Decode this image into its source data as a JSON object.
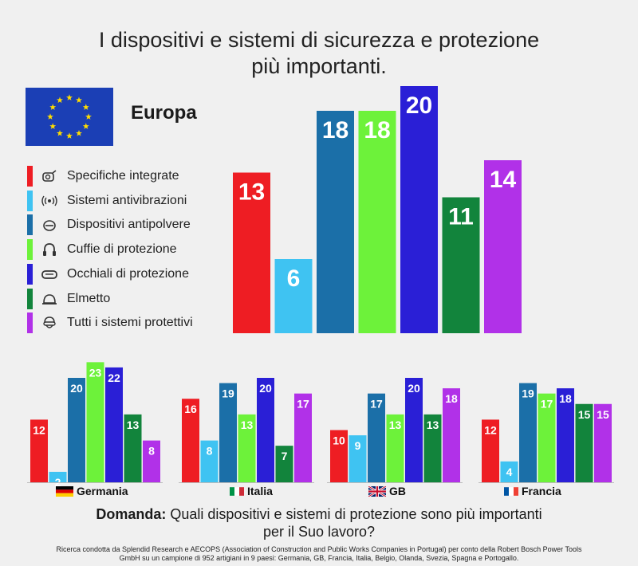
{
  "title_line1": "I dispositivi e sistemi di sicurezza e protezione",
  "title_line2": "più importanti.",
  "region": "Europa",
  "legend": [
    {
      "label": "Specifiche integrate",
      "color": "#ee1d23",
      "icon": "integrated-specs-icon"
    },
    {
      "label": "Sistemi antivibrazioni",
      "color": "#3fc3f2",
      "icon": "antivibration-icon"
    },
    {
      "label": "Dispositivi antipolvere",
      "color": "#1b6fa8",
      "icon": "dust-protection-icon"
    },
    {
      "label": "Cuffie di protezione",
      "color": "#6df23a",
      "icon": "ear-protection-icon"
    },
    {
      "label": "Occhiali di protezione",
      "color": "#2a1fd6",
      "icon": "goggles-icon"
    },
    {
      "label": "Elmetto",
      "color": "#12843c",
      "icon": "helmet-icon"
    },
    {
      "label": "Tutti i sistemi protettivi",
      "color": "#b131e8",
      "icon": "full-protection-icon"
    }
  ],
  "chart_data": [
    {
      "type": "bar",
      "name": "Europa",
      "categories": [
        "Specifiche integrate",
        "Sistemi antivibrazioni",
        "Dispositivi antipolvere",
        "Cuffie di protezione",
        "Occhiali di protezione",
        "Elmetto",
        "Tutti i sistemi protettivi"
      ],
      "values": [
        13,
        6,
        18,
        18,
        20,
        11,
        14
      ],
      "ylim": [
        0,
        20
      ]
    },
    {
      "type": "bar",
      "name": "Germania",
      "categories": [
        "Specifiche integrate",
        "Sistemi antivibrazioni",
        "Dispositivi antipolvere",
        "Cuffie di protezione",
        "Occhiali di protezione",
        "Elmetto",
        "Tutti i sistemi protettivi"
      ],
      "values": [
        12,
        2,
        20,
        23,
        22,
        13,
        8
      ],
      "ylim": [
        0,
        23
      ]
    },
    {
      "type": "bar",
      "name": "Italia",
      "categories": [
        "Specifiche integrate",
        "Sistemi antivibrazioni",
        "Dispositivi antipolvere",
        "Cuffie di protezione",
        "Occhiali di protezione",
        "Elmetto",
        "Tutti i sistemi protettivi"
      ],
      "values": [
        16,
        8,
        19,
        13,
        20,
        7,
        17
      ],
      "ylim": [
        0,
        23
      ]
    },
    {
      "type": "bar",
      "name": "GB",
      "categories": [
        "Specifiche integrate",
        "Sistemi antivibrazioni",
        "Dispositivi antipolvere",
        "Cuffie di protezione",
        "Occhiali di protezione",
        "Elmetto",
        "Tutti i sistemi protettivi"
      ],
      "values": [
        10,
        9,
        17,
        13,
        20,
        13,
        18
      ],
      "ylim": [
        0,
        23
      ]
    },
    {
      "type": "bar",
      "name": "Francia",
      "categories": [
        "Specifiche integrate",
        "Sistemi antivibrazioni",
        "Dispositivi antipolvere",
        "Cuffie di protezione",
        "Occhiali di protezione",
        "Elmetto",
        "Tutti i sistemi protettivi"
      ],
      "values": [
        12,
        4,
        19,
        17,
        18,
        15,
        15
      ],
      "ylim": [
        0,
        23
      ]
    }
  ],
  "countries": [
    {
      "name": "Germania",
      "flag": "germany-flag"
    },
    {
      "name": "Italia",
      "flag": "italy-flag"
    },
    {
      "name": "GB",
      "flag": "uk-flag"
    },
    {
      "name": "Francia",
      "flag": "france-flag"
    }
  ],
  "question_label": "Domanda:",
  "question_text_1": " Quali dispositivi e sistemi di protezione sono più importanti",
  "question_text_2": "per il Suo lavoro?",
  "footnote_1": "Ricerca condotta da Splendid Research e AECOPS (Association of Construction and Public Works Companies in Portugal) per conto della Robert Bosch Power Tools",
  "footnote_2": "GmbH su un campione di 952 artigiani in 9 paesi: Germania, GB, Francia, Italia, Belgio, Olanda, Svezia, Spagna e Portogallo."
}
